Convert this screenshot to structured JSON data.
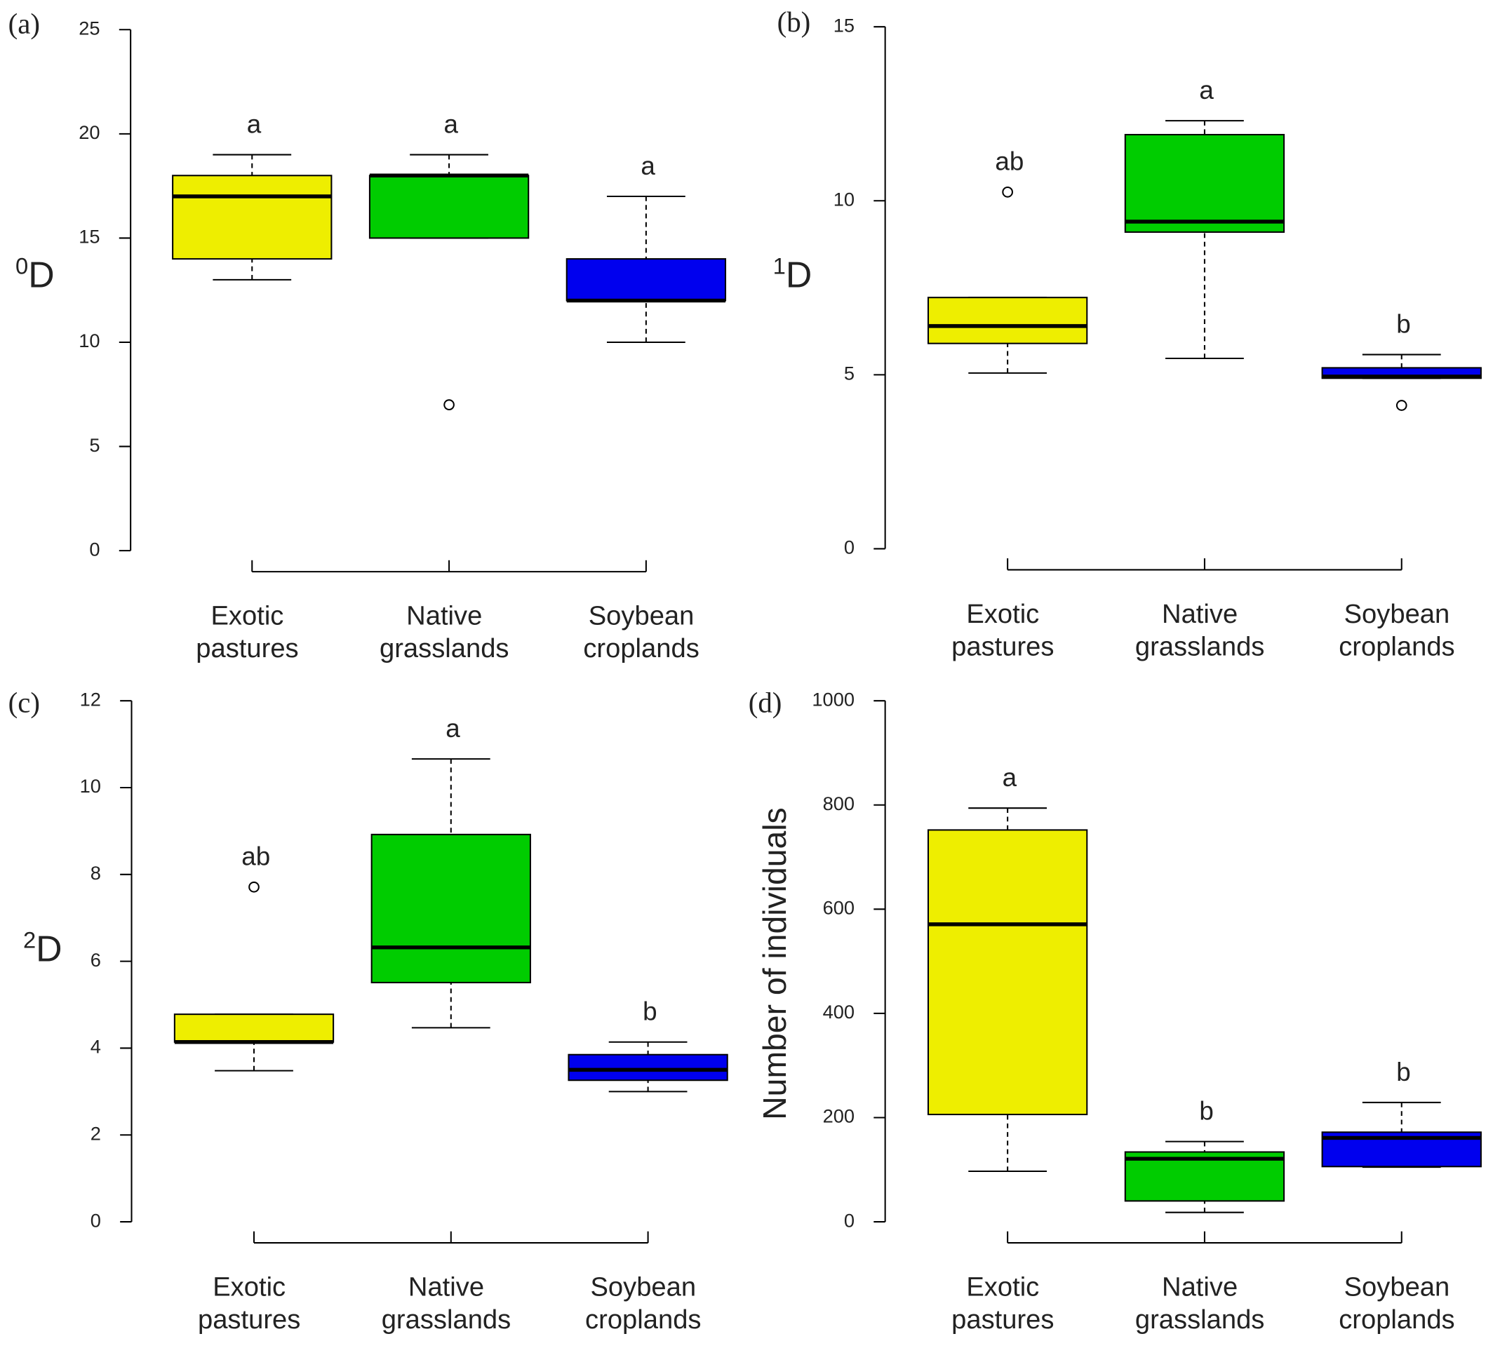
{
  "chart_data": [
    {
      "type": "box",
      "panel": "(a)",
      "ylabel_sup": "0",
      "ylabel": "D",
      "ylim": [
        0,
        25
      ],
      "yticks": [
        0,
        5,
        10,
        15,
        20,
        25
      ],
      "categories": [
        [
          "Exotic",
          "pastures"
        ],
        [
          "Native",
          "grasslands"
        ],
        [
          "Soybean",
          "croplands"
        ]
      ],
      "series": [
        {
          "color": "#eeee00",
          "min": 13,
          "q1": 14,
          "median": 17,
          "q3": 18,
          "max": 19,
          "outliers": [],
          "letter": "a"
        },
        {
          "color": "#00cc00",
          "min": 15,
          "q1": 15,
          "median": 18,
          "q3": 18,
          "max": 19,
          "outliers": [
            7
          ],
          "letter": "a"
        },
        {
          "color": "#0000ee",
          "min": 10,
          "q1": 12,
          "median": 12,
          "q3": 14,
          "max": 17,
          "outliers": [],
          "letter": "a"
        }
      ]
    },
    {
      "type": "box",
      "panel": "(b)",
      "ylabel_sup": "1",
      "ylabel": "D",
      "ylim": [
        0,
        15
      ],
      "yticks": [
        0,
        5,
        10,
        15
      ],
      "categories": [
        [
          "Exotic",
          "pastures"
        ],
        [
          "Native",
          "grasslands"
        ],
        [
          "Soybean",
          "croplands"
        ]
      ],
      "series": [
        {
          "color": "#eeee00",
          "min": 5.05,
          "q1": 5.9,
          "median": 6.4,
          "q3": 7.22,
          "max": 7.22,
          "outliers": [
            10.25
          ],
          "letter": "ab"
        },
        {
          "color": "#00cc00",
          "min": 5.47,
          "q1": 9.1,
          "median": 9.4,
          "q3": 11.9,
          "max": 12.3,
          "outliers": [],
          "letter": "a"
        },
        {
          "color": "#0000ee",
          "min": 4.9,
          "q1": 4.9,
          "median": 4.95,
          "q3": 5.2,
          "max": 5.58,
          "outliers": [
            4.12
          ],
          "letter": "b"
        }
      ]
    },
    {
      "type": "box",
      "panel": "(c)",
      "ylabel_sup": "2",
      "ylabel": "D",
      "ylim": [
        0,
        12
      ],
      "yticks": [
        0,
        2,
        4,
        6,
        8,
        10,
        12
      ],
      "categories": [
        [
          "Exotic",
          "pastures"
        ],
        [
          "Native",
          "grasslands"
        ],
        [
          "Soybean",
          "croplands"
        ]
      ],
      "series": [
        {
          "color": "#eeee00",
          "min": 3.48,
          "q1": 4.14,
          "median": 4.14,
          "q3": 4.78,
          "max": 4.78,
          "outliers": [
            7.71
          ],
          "letter": "ab"
        },
        {
          "color": "#00cc00",
          "min": 4.47,
          "q1": 5.51,
          "median": 6.32,
          "q3": 8.92,
          "max": 10.66,
          "outliers": [],
          "letter": "a"
        },
        {
          "color": "#0000ee",
          "min": 3.0,
          "q1": 3.26,
          "median": 3.5,
          "q3": 3.85,
          "max": 4.14,
          "outliers": [],
          "letter": "b"
        }
      ]
    },
    {
      "type": "box",
      "panel": "(d)",
      "ylabel": "Number of individuals",
      "ylim": [
        0,
        1000
      ],
      "yticks": [
        0,
        200,
        400,
        600,
        800,
        1000
      ],
      "categories": [
        [
          "Exotic",
          "pastures"
        ],
        [
          "Native",
          "grasslands"
        ],
        [
          "Soybean",
          "croplands"
        ]
      ],
      "series": [
        {
          "color": "#eeee00",
          "min": 97,
          "q1": 206,
          "median": 571,
          "q3": 752,
          "max": 794,
          "outliers": [],
          "letter": "a"
        },
        {
          "color": "#00cc00",
          "min": 18,
          "q1": 40,
          "median": 121,
          "q3": 134,
          "max": 154,
          "outliers": [],
          "letter": "b"
        },
        {
          "color": "#0000ee",
          "min": 105,
          "q1": 106,
          "median": 161,
          "q3": 172,
          "max": 229,
          "outliers": [],
          "letter": "b"
        }
      ]
    }
  ]
}
